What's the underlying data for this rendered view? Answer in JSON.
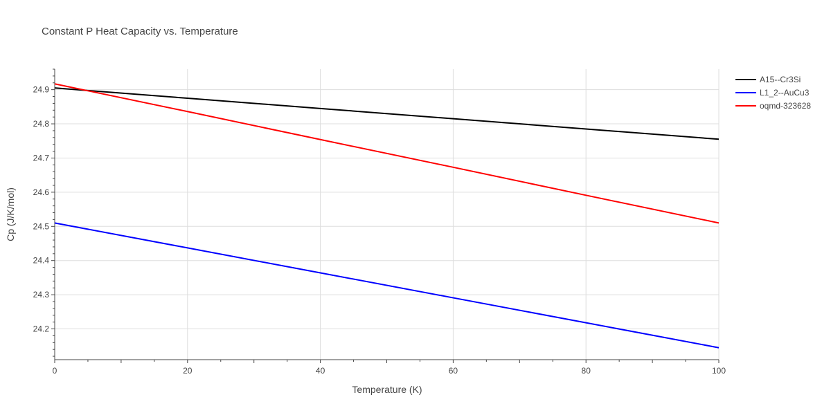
{
  "chart_data": {
    "type": "line",
    "title": "Constant P Heat Capacity vs. Temperature",
    "xlabel": "Temperature (K)",
    "ylabel": "Cp (J/K/mol)",
    "xlim": [
      0,
      100
    ],
    "ylim": [
      24.11,
      24.96
    ],
    "x_ticks": [
      0,
      20,
      40,
      60,
      80,
      100
    ],
    "y_ticks": [
      24.2,
      24.3,
      24.4,
      24.5,
      24.6,
      24.7,
      24.8,
      24.9
    ],
    "grid": true,
    "legend_position": "top-right",
    "series": [
      {
        "name": "A15--Cr3Si",
        "color": "#000000",
        "x": [
          0,
          20,
          40,
          60,
          80,
          100
        ],
        "y": [
          24.905,
          24.875,
          24.845,
          24.815,
          24.785,
          24.755
        ]
      },
      {
        "name": "L1_2--AuCu3",
        "color": "#0000ff",
        "x": [
          0,
          20,
          40,
          60,
          80,
          100
        ],
        "y": [
          24.51,
          24.437,
          24.364,
          24.291,
          24.218,
          24.145
        ]
      },
      {
        "name": "oqmd-323628",
        "color": "#ff0000",
        "x": [
          0,
          20,
          40,
          60,
          80,
          100
        ],
        "y": [
          24.917,
          24.836,
          24.754,
          24.673,
          24.591,
          24.51
        ]
      }
    ]
  }
}
